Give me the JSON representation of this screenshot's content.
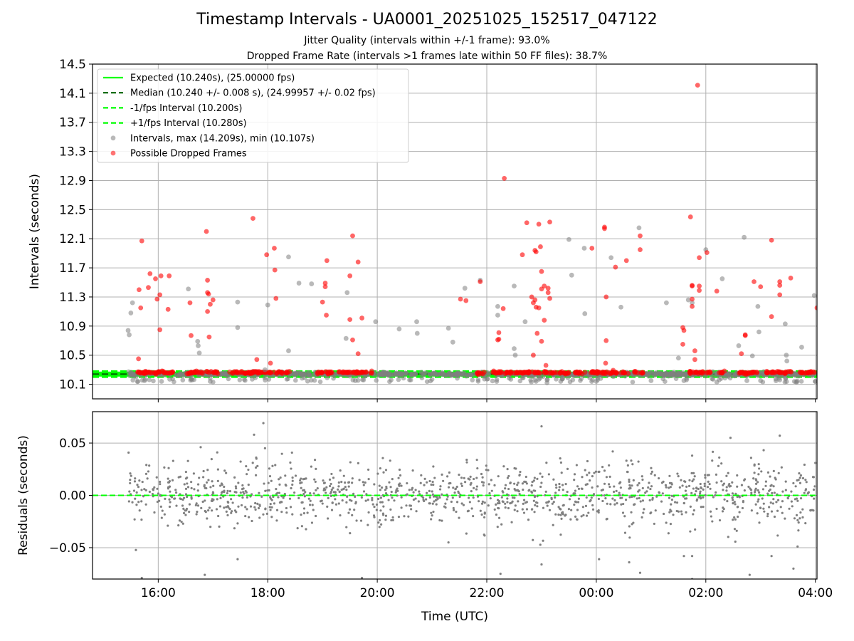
{
  "header": {
    "title": "Timestamp Intervals - UA0001_20251025_152517_047122",
    "subtitle_1": "Jitter Quality (intervals within +/-1 frame): 93.0%",
    "subtitle_2": "Dropped Frame Rate (intervals >1 frames late within 50 FF files): 38.7%"
  },
  "chart_data": [
    {
      "type": "scatter",
      "ylabel": "Intervals (seconds)",
      "xlabel": "",
      "x_unit": "hours after 00:00 UTC of day 1",
      "xlim": [
        14.8,
        28.03
      ],
      "ylim": [
        9.9,
        14.5
      ],
      "yticks": [
        10.1,
        10.5,
        10.9,
        11.3,
        11.7,
        12.1,
        12.5,
        12.9,
        13.3,
        13.7,
        14.1,
        14.5
      ],
      "ytick_labels": [
        "10.1",
        "10.5",
        "10.9",
        "11.3",
        "11.7",
        "12.1",
        "12.5",
        "12.9",
        "13.3",
        "13.7",
        "14.1",
        "14.5"
      ],
      "grid": true,
      "legend_position": "upper-left",
      "reference_lines": [
        {
          "name": "Expected (10.240s), (25.00000 fps)",
          "y": 10.24,
          "style": "solid",
          "color": "#00ff00"
        },
        {
          "name": "Median (10.240 +/- 0.008 s), (24.99957 +/- 0.02 fps)",
          "y": 10.24,
          "style": "dashed",
          "color": "#006400"
        },
        {
          "name": "-1/fps Interval (10.200s)",
          "y": 10.2,
          "style": "dashed",
          "color": "#00ff00"
        },
        {
          "name": "+1/fps Interval (10.280s)",
          "y": 10.28,
          "style": "dashed",
          "color": "#00ff00"
        }
      ],
      "series": [
        {
          "name": "Intervals, max (14.209s), min (10.107s)",
          "color": "#808080",
          "points": [
            [
              15.45,
              10.84
            ],
            [
              15.47,
              10.78
            ],
            [
              15.5,
              11.08
            ],
            [
              15.53,
              11.22
            ],
            [
              15.63,
              10.14
            ],
            [
              15.75,
              10.15
            ],
            [
              16.06,
              10.14
            ],
            [
              16.21,
              10.17
            ],
            [
              16.55,
              11.41
            ],
            [
              16.62,
              10.16
            ],
            [
              16.72,
              10.69
            ],
            [
              16.73,
              10.63
            ],
            [
              16.75,
              10.53
            ],
            [
              16.95,
              10.14
            ],
            [
              17.45,
              10.88
            ],
            [
              17.45,
              11.23
            ],
            [
              17.95,
              10.3
            ],
            [
              18.0,
              11.19
            ],
            [
              18.38,
              10.56
            ],
            [
              18.38,
              11.85
            ],
            [
              18.57,
              11.49
            ],
            [
              18.8,
              11.48
            ],
            [
              19.43,
              10.73
            ],
            [
              19.45,
              11.36
            ],
            [
              19.6,
              10.15
            ],
            [
              19.75,
              10.16
            ],
            [
              19.97,
              10.96
            ],
            [
              20.4,
              10.86
            ],
            [
              20.72,
              10.96
            ],
            [
              20.73,
              10.8
            ],
            [
              21.3,
              10.87
            ],
            [
              21.38,
              10.68
            ],
            [
              21.6,
              11.42
            ],
            [
              21.88,
              11.53
            ],
            [
              22.2,
              11.17
            ],
            [
              22.2,
              11.05
            ],
            [
              22.5,
              10.59
            ],
            [
              22.52,
              10.5
            ],
            [
              22.5,
              11.45
            ],
            [
              22.7,
              10.96
            ],
            [
              22.9,
              10.14
            ],
            [
              23.1,
              10.16
            ],
            [
              23.35,
              10.14
            ],
            [
              23.55,
              11.6
            ],
            [
              23.5,
              12.09
            ],
            [
              23.79,
              11.07
            ],
            [
              23.78,
              11.97
            ],
            [
              24.0,
              10.14
            ],
            [
              24.27,
              11.84
            ],
            [
              24.45,
              11.16
            ],
            [
              24.78,
              12.25
            ],
            [
              25.0,
              10.15
            ],
            [
              25.28,
              11.22
            ],
            [
              25.5,
              10.46
            ],
            [
              25.6,
              10.15
            ],
            [
              25.68,
              11.26
            ],
            [
              25.75,
              11.22
            ],
            [
              26.0,
              11.95
            ],
            [
              26.3,
              11.55
            ],
            [
              26.6,
              10.63
            ],
            [
              26.7,
              12.12
            ],
            [
              26.75,
              10.15
            ],
            [
              26.85,
              10.49
            ],
            [
              26.95,
              11.17
            ],
            [
              26.97,
              10.82
            ],
            [
              27.0,
              10.15
            ],
            [
              27.35,
              10.16
            ],
            [
              27.45,
              10.93
            ],
            [
              27.47,
              10.5
            ],
            [
              27.48,
              10.42
            ],
            [
              27.75,
              10.61
            ],
            [
              27.98,
              11.32
            ],
            [
              28.0,
              10.14
            ],
            [
              26.2,
              10.13
            ],
            [
              23.1,
              10.12
            ],
            [
              17.0,
              10.13
            ]
          ]
        },
        {
          "name": "Possible Dropped Frames",
          "color": "#ff0000",
          "points": [
            [
              15.64,
              10.45
            ],
            [
              15.65,
              11.4
            ],
            [
              15.68,
              11.15
            ],
            [
              15.7,
              12.07
            ],
            [
              15.82,
              11.43
            ],
            [
              15.85,
              11.62
            ],
            [
              15.95,
              11.55
            ],
            [
              15.98,
              11.27
            ],
            [
              16.03,
              11.33
            ],
            [
              16.03,
              10.85
            ],
            [
              16.05,
              11.59
            ],
            [
              16.2,
              11.59
            ],
            [
              16.18,
              11.13
            ],
            [
              16.58,
              11.22
            ],
            [
              16.6,
              10.77
            ],
            [
              16.9,
              11.53
            ],
            [
              16.9,
              11.36
            ],
            [
              16.92,
              11.34
            ],
            [
              16.9,
              11.1
            ],
            [
              16.93,
              10.75
            ],
            [
              16.95,
              11.2
            ],
            [
              17.0,
              11.26
            ],
            [
              16.88,
              12.2
            ],
            [
              17.73,
              12.38
            ],
            [
              17.8,
              10.44
            ],
            [
              17.98,
              11.88
            ],
            [
              18.12,
              11.97
            ],
            [
              18.13,
              11.67
            ],
            [
              18.15,
              11.28
            ],
            [
              18.05,
              10.39
            ],
            [
              19.0,
              11.23
            ],
            [
              19.05,
              11.44
            ],
            [
              19.05,
              11.49
            ],
            [
              19.07,
              11.05
            ],
            [
              19.08,
              11.8
            ],
            [
              19.5,
              10.99
            ],
            [
              19.5,
              11.59
            ],
            [
              19.55,
              10.71
            ],
            [
              19.55,
              12.14
            ],
            [
              19.65,
              10.52
            ],
            [
              19.65,
              11.78
            ],
            [
              19.72,
              11.01
            ],
            [
              21.52,
              11.27
            ],
            [
              21.62,
              11.25
            ],
            [
              21.88,
              11.51
            ],
            [
              22.2,
              10.71
            ],
            [
              22.22,
              10.81
            ],
            [
              22.22,
              10.72
            ],
            [
              22.3,
              11.14
            ],
            [
              22.32,
              12.93
            ],
            [
              22.65,
              11.88
            ],
            [
              22.73,
              12.32
            ],
            [
              22.85,
              11.22
            ],
            [
              22.85,
              10.5
            ],
            [
              22.88,
              11.94
            ],
            [
              22.9,
              11.16
            ],
            [
              22.92,
              10.8
            ],
            [
              22.95,
              11.15
            ],
            [
              22.9,
              11.92
            ],
            [
              22.95,
              12.3
            ],
            [
              22.98,
              11.99
            ],
            [
              23.0,
              11.65
            ],
            [
              23.05,
              11.45
            ],
            [
              23.05,
              10.98
            ],
            [
              23.0,
              11.41
            ],
            [
              23.08,
              10.36
            ],
            [
              23.0,
              10.69
            ],
            [
              23.12,
              11.42
            ],
            [
              23.12,
              11.36
            ],
            [
              23.15,
              11.28
            ],
            [
              22.82,
              11.3
            ],
            [
              22.88,
              11.26
            ],
            [
              23.15,
              12.33
            ],
            [
              23.92,
              11.97
            ],
            [
              24.15,
              12.26
            ],
            [
              24.15,
              12.24
            ],
            [
              24.18,
              11.3
            ],
            [
              24.18,
              10.7
            ],
            [
              24.17,
              10.39
            ],
            [
              24.35,
              11.71
            ],
            [
              24.55,
              11.8
            ],
            [
              24.8,
              11.95
            ],
            [
              24.8,
              12.14
            ],
            [
              25.58,
              10.88
            ],
            [
              25.6,
              10.84
            ],
            [
              25.58,
              10.65
            ],
            [
              25.72,
              12.4
            ],
            [
              25.75,
              11.46
            ],
            [
              25.75,
              11.45
            ],
            [
              25.75,
              11.27
            ],
            [
              25.75,
              11.17
            ],
            [
              25.8,
              10.56
            ],
            [
              25.8,
              10.44
            ],
            [
              25.85,
              14.21
            ],
            [
              25.88,
              11.84
            ],
            [
              25.88,
              11.45
            ],
            [
              25.88,
              11.39
            ],
            [
              26.02,
              11.91
            ],
            [
              26.2,
              11.38
            ],
            [
              26.65,
              10.52
            ],
            [
              26.72,
              10.78
            ],
            [
              26.72,
              10.77
            ],
            [
              26.88,
              11.51
            ],
            [
              27.0,
              11.44
            ],
            [
              27.2,
              12.08
            ],
            [
              27.2,
              11.03
            ],
            [
              27.35,
              11.51
            ],
            [
              27.35,
              11.46
            ],
            [
              27.35,
              11.33
            ],
            [
              27.55,
              11.56
            ],
            [
              28.03,
              11.15
            ]
          ]
        }
      ]
    },
    {
      "type": "scatter",
      "ylabel": "Residuals (seconds)",
      "xlabel": "Time (UTC)",
      "xlim": [
        14.8,
        28.03
      ],
      "ylim": [
        -0.08,
        0.08
      ],
      "yticks": [
        -0.05,
        0.0,
        0.05
      ],
      "ytick_labels": [
        "−0.05",
        "0.00",
        "0.05"
      ],
      "xticks": [
        16,
        18,
        20,
        22,
        24,
        26,
        28
      ],
      "xtick_labels": [
        "16:00",
        "18:00",
        "20:00",
        "22:00",
        "00:00",
        "02:00",
        "04:00"
      ],
      "grid": true,
      "reference_lines": [
        {
          "y": 0.0,
          "style": "dashed",
          "color": "#00ff00"
        }
      ],
      "series": [
        {
          "name": "",
          "color": "#808080",
          "x_range": [
            15.45,
            28.0
          ],
          "count": 1250,
          "typical_spread": 0.015,
          "outliers": [
            [
              15.7,
              -0.079
            ],
            [
              16.85,
              -0.076
            ],
            [
              17.75,
              0.058
            ],
            [
              17.92,
              0.069
            ],
            [
              17.95,
              0.045
            ],
            [
              17.45,
              -0.061
            ],
            [
              19.72,
              -0.079
            ],
            [
              21.3,
              -0.045
            ],
            [
              22.25,
              -0.075
            ],
            [
              23.0,
              0.066
            ],
            [
              23.0,
              -0.066
            ],
            [
              24.05,
              -0.061
            ],
            [
              24.3,
              0.042
            ],
            [
              24.6,
              -0.064
            ],
            [
              24.8,
              -0.074
            ],
            [
              25.6,
              -0.058
            ],
            [
              25.75,
              -0.058
            ],
            [
              25.75,
              0.038
            ],
            [
              25.75,
              -0.08
            ],
            [
              26.45,
              0.055
            ],
            [
              26.8,
              -0.076
            ],
            [
              27.2,
              -0.058
            ],
            [
              27.35,
              0.057
            ],
            [
              27.6,
              -0.07
            ],
            [
              28.0,
              0.031
            ]
          ]
        }
      ]
    }
  ]
}
